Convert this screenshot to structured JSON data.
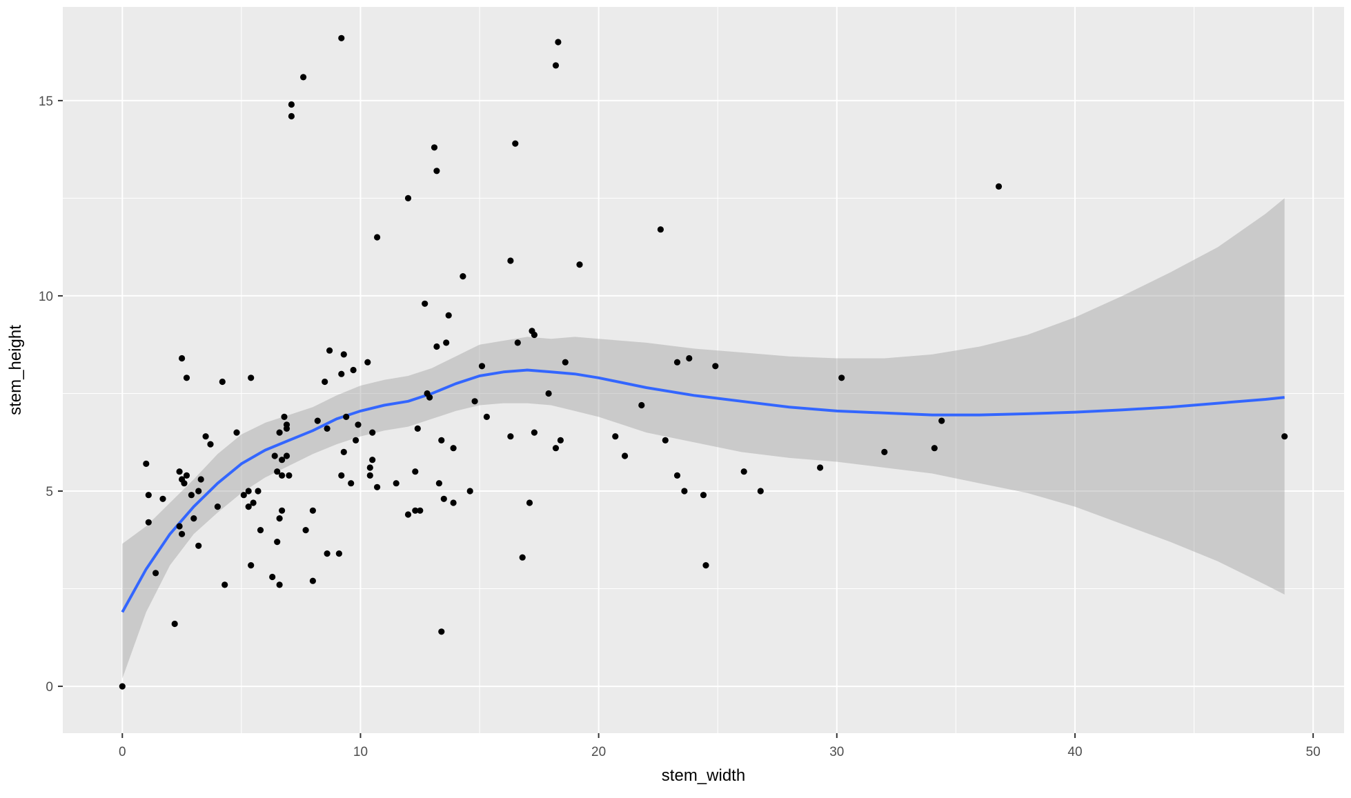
{
  "chart_data": {
    "type": "scatter",
    "xlabel": "stem_width",
    "ylabel": "stem_height",
    "xlim": [
      -2.5,
      51.3
    ],
    "ylim": [
      -1.2,
      17.4
    ],
    "x_ticks": [
      0,
      10,
      20,
      30,
      40,
      50
    ],
    "y_ticks": [
      0,
      5,
      10,
      15
    ],
    "x_tick_labels": [
      "0",
      "10",
      "20",
      "30",
      "40",
      "50"
    ],
    "y_tick_labels": [
      "0",
      "5",
      "10",
      "15"
    ],
    "grid": true,
    "legend": "none",
    "colors": {
      "panel": "#EBEBEB",
      "grid": "#FFFFFF",
      "points": "#000000",
      "smooth_line": "#3366FF",
      "confidence_band": "#999999",
      "text": "#4D4D4D",
      "axis_title": "#000000"
    },
    "points": [
      [
        0,
        0
      ],
      [
        1.0,
        5.7
      ],
      [
        1.1,
        4.9
      ],
      [
        1.1,
        4.2
      ],
      [
        1.4,
        2.9
      ],
      [
        1.7,
        4.8
      ],
      [
        2.2,
        1.6
      ],
      [
        2.4,
        5.5
      ],
      [
        2.4,
        4.1
      ],
      [
        2.5,
        3.9
      ],
      [
        2.5,
        5.3
      ],
      [
        2.5,
        8.4
      ],
      [
        2.6,
        5.2
      ],
      [
        2.7,
        5.4
      ],
      [
        2.7,
        7.9
      ],
      [
        2.9,
        4.9
      ],
      [
        3.0,
        4.3
      ],
      [
        3.2,
        3.6
      ],
      [
        3.2,
        5.0
      ],
      [
        3.3,
        5.3
      ],
      [
        3.5,
        6.4
      ],
      [
        3.7,
        6.2
      ],
      [
        4.0,
        4.6
      ],
      [
        4.2,
        7.8
      ],
      [
        4.3,
        2.6
      ],
      [
        4.8,
        6.5
      ],
      [
        5.1,
        4.9
      ],
      [
        5.3,
        5.0
      ],
      [
        5.3,
        4.6
      ],
      [
        5.4,
        3.1
      ],
      [
        5.4,
        7.9
      ],
      [
        5.5,
        4.7
      ],
      [
        5.7,
        5.0
      ],
      [
        5.8,
        4.0
      ],
      [
        6.3,
        2.8
      ],
      [
        6.4,
        5.9
      ],
      [
        6.5,
        5.5
      ],
      [
        6.5,
        3.7
      ],
      [
        6.6,
        4.3
      ],
      [
        6.6,
        6.5
      ],
      [
        6.6,
        2.6
      ],
      [
        6.7,
        4.5
      ],
      [
        6.7,
        5.4
      ],
      [
        6.7,
        5.8
      ],
      [
        6.8,
        6.9
      ],
      [
        6.9,
        6.7
      ],
      [
        6.9,
        6.6
      ],
      [
        6.9,
        5.9
      ],
      [
        7.0,
        5.4
      ],
      [
        7.1,
        14.9
      ],
      [
        7.1,
        14.6
      ],
      [
        7.6,
        15.6
      ],
      [
        7.7,
        4.0
      ],
      [
        8.0,
        4.5
      ],
      [
        8.0,
        2.7
      ],
      [
        8.2,
        6.8
      ],
      [
        8.5,
        7.8
      ],
      [
        8.6,
        3.4
      ],
      [
        8.6,
        6.6
      ],
      [
        8.7,
        8.6
      ],
      [
        9.1,
        3.4
      ],
      [
        9.2,
        5.4
      ],
      [
        9.2,
        8.0
      ],
      [
        9.2,
        16.6
      ],
      [
        9.3,
        6.0
      ],
      [
        9.3,
        8.5
      ],
      [
        9.4,
        6.9
      ],
      [
        9.6,
        5.2
      ],
      [
        9.7,
        8.1
      ],
      [
        9.8,
        6.3
      ],
      [
        9.9,
        6.7
      ],
      [
        10.3,
        8.3
      ],
      [
        10.4,
        5.6
      ],
      [
        10.4,
        5.4
      ],
      [
        10.5,
        5.8
      ],
      [
        10.5,
        6.5
      ],
      [
        10.7,
        5.1
      ],
      [
        10.7,
        11.5
      ],
      [
        11.5,
        5.2
      ],
      [
        12.0,
        12.5
      ],
      [
        12.0,
        4.4
      ],
      [
        12.3,
        4.5
      ],
      [
        12.3,
        5.5
      ],
      [
        12.4,
        6.6
      ],
      [
        12.5,
        4.5
      ],
      [
        12.7,
        9.8
      ],
      [
        12.8,
        7.5
      ],
      [
        12.9,
        7.4
      ],
      [
        13.1,
        13.8
      ],
      [
        13.2,
        8.7
      ],
      [
        13.2,
        13.2
      ],
      [
        13.3,
        5.2
      ],
      [
        13.4,
        6.3
      ],
      [
        13.4,
        1.4
      ],
      [
        13.5,
        4.8
      ],
      [
        13.6,
        8.8
      ],
      [
        13.7,
        9.5
      ],
      [
        13.9,
        6.1
      ],
      [
        13.9,
        4.7
      ],
      [
        14.3,
        10.5
      ],
      [
        14.6,
        5.0
      ],
      [
        14.8,
        7.3
      ],
      [
        15.1,
        8.2
      ],
      [
        15.3,
        6.9
      ],
      [
        16.3,
        10.9
      ],
      [
        16.3,
        6.4
      ],
      [
        16.5,
        13.9
      ],
      [
        16.6,
        8.8
      ],
      [
        16.8,
        3.3
      ],
      [
        17.1,
        4.7
      ],
      [
        17.2,
        9.1
      ],
      [
        17.3,
        9.0
      ],
      [
        17.3,
        6.5
      ],
      [
        17.9,
        7.5
      ],
      [
        18.2,
        6.1
      ],
      [
        18.2,
        15.9
      ],
      [
        18.3,
        16.5
      ],
      [
        18.4,
        6.3
      ],
      [
        18.6,
        8.3
      ],
      [
        19.2,
        10.8
      ],
      [
        20.7,
        6.4
      ],
      [
        21.1,
        5.9
      ],
      [
        21.8,
        7.2
      ],
      [
        22.6,
        11.7
      ],
      [
        22.8,
        6.3
      ],
      [
        23.3,
        5.4
      ],
      [
        23.3,
        8.3
      ],
      [
        23.6,
        5.0
      ],
      [
        23.8,
        8.4
      ],
      [
        24.4,
        4.9
      ],
      [
        24.5,
        3.1
      ],
      [
        24.9,
        8.2
      ],
      [
        26.1,
        5.5
      ],
      [
        26.8,
        5.0
      ],
      [
        29.3,
        5.6
      ],
      [
        30.2,
        7.9
      ],
      [
        32.0,
        6.0
      ],
      [
        34.1,
        6.1
      ],
      [
        34.4,
        6.8
      ],
      [
        36.8,
        12.8
      ],
      [
        48.8,
        6.4
      ]
    ],
    "smooth": {
      "x": [
        0,
        1,
        2,
        3,
        4,
        5,
        6,
        7,
        8,
        9,
        10,
        11,
        12,
        13,
        14,
        15,
        16,
        17,
        18,
        19,
        20,
        22,
        24,
        26,
        28,
        30,
        32,
        34,
        36,
        38,
        40,
        42,
        44,
        46,
        48,
        48.8
      ],
      "y": [
        1.9,
        3.0,
        3.9,
        4.6,
        5.2,
        5.7,
        6.05,
        6.3,
        6.55,
        6.85,
        7.05,
        7.2,
        7.3,
        7.5,
        7.75,
        7.95,
        8.05,
        8.1,
        8.05,
        8.0,
        7.9,
        7.65,
        7.45,
        7.3,
        7.15,
        7.05,
        7.0,
        6.95,
        6.95,
        6.98,
        7.02,
        7.08,
        7.15,
        7.25,
        7.35,
        7.4
      ],
      "ymin": [
        0.2,
        1.9,
        3.1,
        3.9,
        4.45,
        4.95,
        5.35,
        5.65,
        5.95,
        6.2,
        6.4,
        6.55,
        6.65,
        6.85,
        7.05,
        7.2,
        7.25,
        7.25,
        7.2,
        7.05,
        6.9,
        6.5,
        6.25,
        6.0,
        5.85,
        5.75,
        5.6,
        5.45,
        5.2,
        4.95,
        4.6,
        4.15,
        3.7,
        3.2,
        2.6,
        2.35
      ],
      "ymax": [
        3.65,
        4.1,
        4.7,
        5.3,
        5.95,
        6.45,
        6.75,
        6.95,
        7.15,
        7.45,
        7.7,
        7.85,
        7.95,
        8.15,
        8.45,
        8.75,
        8.85,
        8.95,
        8.9,
        8.95,
        8.9,
        8.8,
        8.65,
        8.55,
        8.45,
        8.4,
        8.4,
        8.5,
        8.7,
        9.0,
        9.45,
        10.0,
        10.6,
        11.25,
        12.1,
        12.5
      ]
    }
  }
}
